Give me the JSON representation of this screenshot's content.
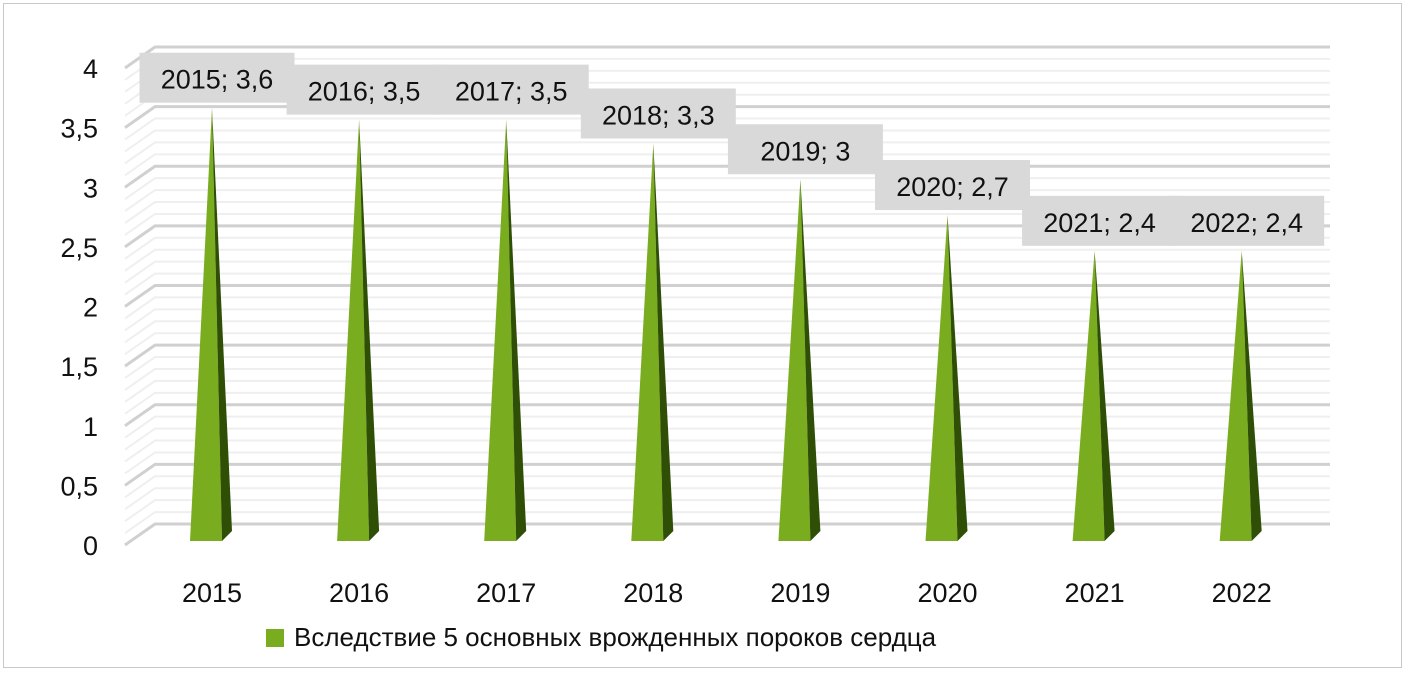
{
  "chart_data": {
    "type": "bar",
    "bar_shape": "3d-pyramid",
    "categories": [
      "2015",
      "2016",
      "2017",
      "2018",
      "2019",
      "2020",
      "2021",
      "2022"
    ],
    "series": [
      {
        "name": "Вследствие 5 основных врожденных пороков сердца",
        "values": [
          3.6,
          3.5,
          3.5,
          3.3,
          3.0,
          2.7,
          2.4,
          2.4
        ],
        "color": "#7aac1f",
        "shade_color": "#2f4f06"
      }
    ],
    "data_labels": [
      "2015; 3,6",
      "2016; 3,5",
      "2017; 3,5",
      "2018; 3,3",
      "2019; 3",
      "2020; 2,7",
      "2021; 2,4",
      "2022; 2,4"
    ],
    "data_label_background": "#d9d9d9",
    "yticks": [
      "0",
      "0,5",
      "1",
      "1,5",
      "2",
      "2,5",
      "3",
      "3,5",
      "4"
    ],
    "ylim": [
      0,
      4
    ],
    "grid": true,
    "legend": "bottom",
    "title": "",
    "xlabel": "",
    "ylabel": ""
  }
}
